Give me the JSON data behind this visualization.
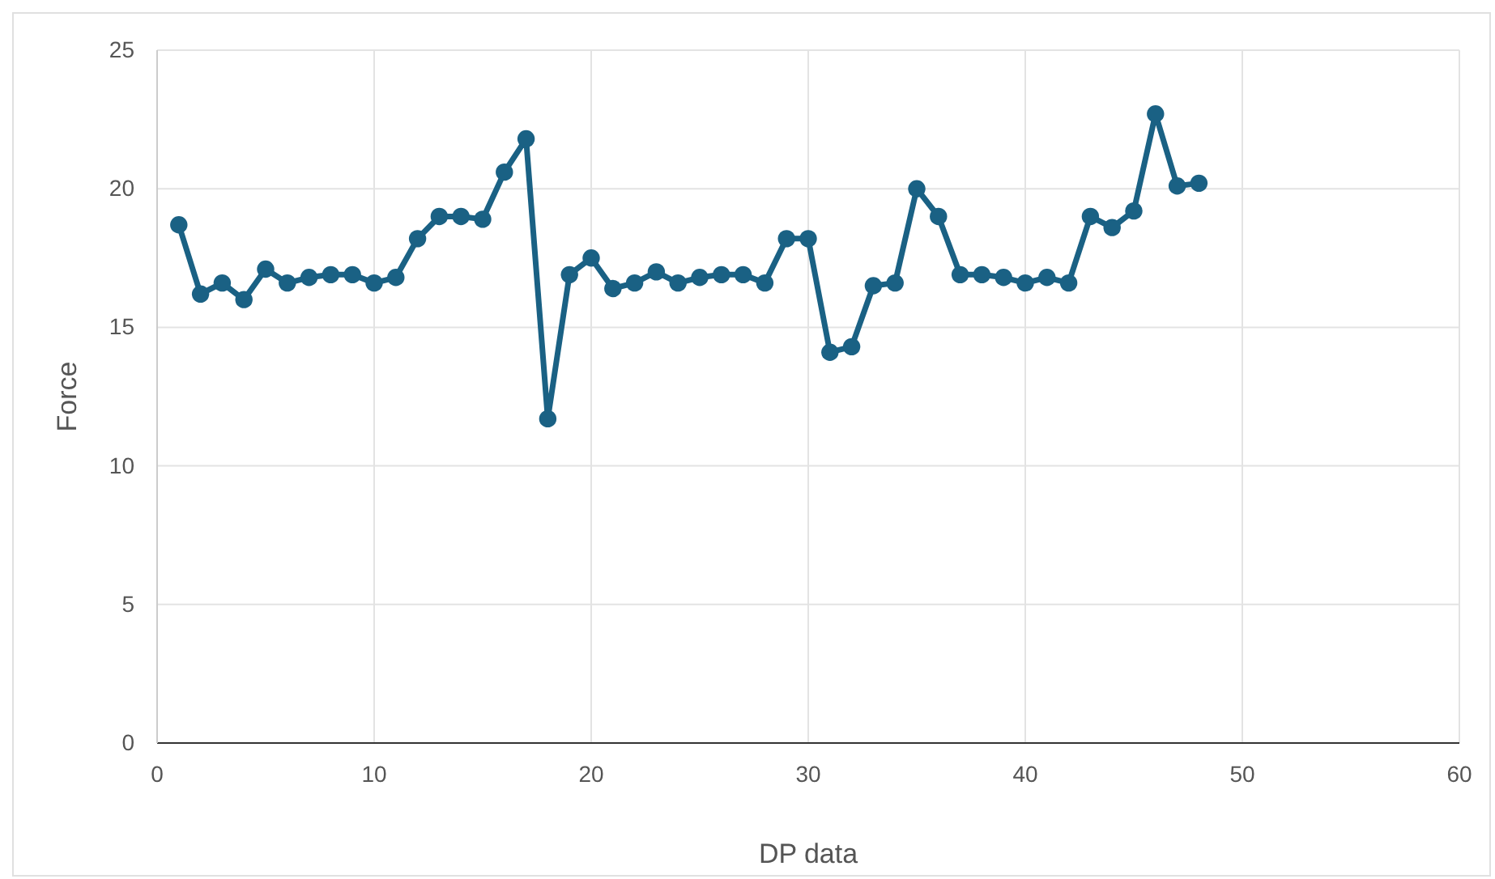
{
  "chart_data": {
    "type": "line",
    "xlabel": "DP data",
    "ylabel": "Force",
    "x": [
      1,
      2,
      3,
      4,
      5,
      6,
      7,
      8,
      9,
      10,
      11,
      12,
      13,
      14,
      15,
      16,
      17,
      18,
      19,
      20,
      21,
      22,
      23,
      24,
      25,
      26,
      27,
      28,
      29,
      30,
      31,
      32,
      33,
      34,
      35,
      36,
      37,
      38,
      39,
      40,
      41,
      42,
      43,
      44,
      45,
      46,
      47,
      48
    ],
    "series": [
      {
        "color": "#1a6184",
        "values": [
          18.7,
          16.2,
          16.6,
          16.0,
          17.1,
          16.6,
          16.8,
          16.9,
          16.9,
          16.6,
          16.8,
          18.2,
          19.0,
          19.0,
          18.9,
          20.6,
          21.8,
          11.7,
          16.9,
          17.5,
          16.4,
          16.6,
          17.0,
          16.6,
          16.8,
          16.9,
          16.9,
          16.6,
          18.2,
          18.2,
          14.1,
          14.3,
          16.5,
          16.6,
          20.0,
          19.0,
          16.9,
          16.9,
          16.8,
          16.6,
          16.8,
          16.6,
          19.0,
          18.6,
          19.2,
          22.7,
          20.1,
          20.2
        ]
      }
    ],
    "xlim": [
      0,
      60
    ],
    "xticks": [
      0,
      10,
      20,
      30,
      40,
      50,
      60
    ],
    "ylim": [
      0,
      25
    ],
    "yticks": [
      0,
      5,
      10,
      15,
      20,
      25
    ],
    "grid": true,
    "marker": "circle",
    "line_style": "solid"
  }
}
